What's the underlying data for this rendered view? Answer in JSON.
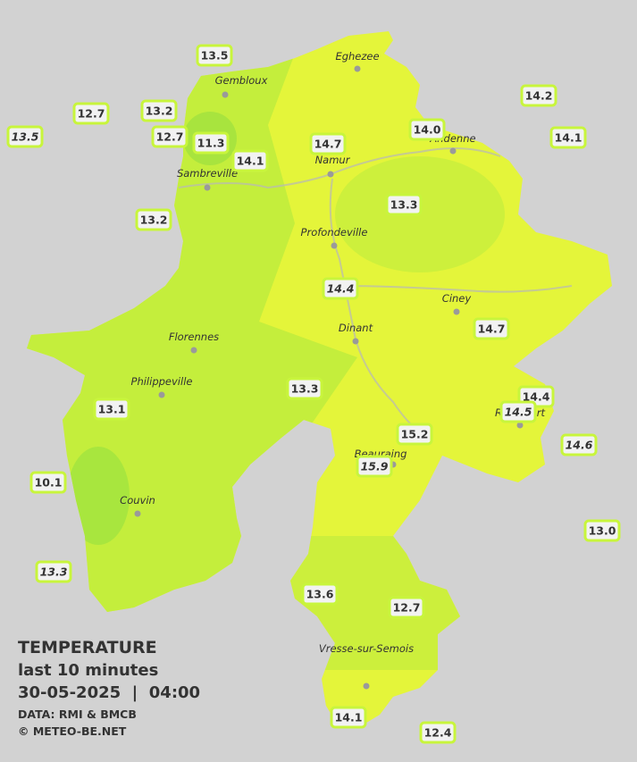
{
  "title": {
    "heading": "TEMPERATURE",
    "period": "last 10 minutes",
    "datetime": "30-05-2025  |  04:00",
    "source": "DATA: RMI & BMCB",
    "copyright": "© METEO-BE.NET"
  },
  "towns": [
    {
      "name": "Eghezee"
    },
    {
      "name": "Gembloux"
    },
    {
      "name": "Andenne"
    },
    {
      "name": "Namur"
    },
    {
      "name": "Sambreville"
    },
    {
      "name": "Profondeville"
    },
    {
      "name": "Ciney"
    },
    {
      "name": "Dinant"
    },
    {
      "name": "Florennes"
    },
    {
      "name": "Philippeville"
    },
    {
      "name": "Rochefort"
    },
    {
      "name": "Beauraing"
    },
    {
      "name": "Couvin"
    },
    {
      "name": "Vresse-sur-Semois"
    }
  ],
  "stations": [
    {
      "value": "13.5"
    },
    {
      "value": "12.7"
    },
    {
      "value": "13.2"
    },
    {
      "value": "13.5",
      "italic": true
    },
    {
      "value": "12.7"
    },
    {
      "value": "11.3"
    },
    {
      "value": "14.1"
    },
    {
      "value": "14.7"
    },
    {
      "value": "14.0"
    },
    {
      "value": "14.2"
    },
    {
      "value": "14.1"
    },
    {
      "value": "13.2"
    },
    {
      "value": "13.3"
    },
    {
      "value": "14.4",
      "italic": true
    },
    {
      "value": "14.7"
    },
    {
      "value": "13.3"
    },
    {
      "value": "13.1"
    },
    {
      "value": "14.4"
    },
    {
      "value": "14.5",
      "italic": true
    },
    {
      "value": "15.2"
    },
    {
      "value": "14.6",
      "italic": true
    },
    {
      "value": "15.9",
      "italic": true
    },
    {
      "value": "10.1"
    },
    {
      "value": "13.0"
    },
    {
      "value": "13.3",
      "italic": true
    },
    {
      "value": "13.6"
    },
    {
      "value": "12.7"
    },
    {
      "value": "14.1"
    },
    {
      "value": "12.4"
    }
  ]
}
